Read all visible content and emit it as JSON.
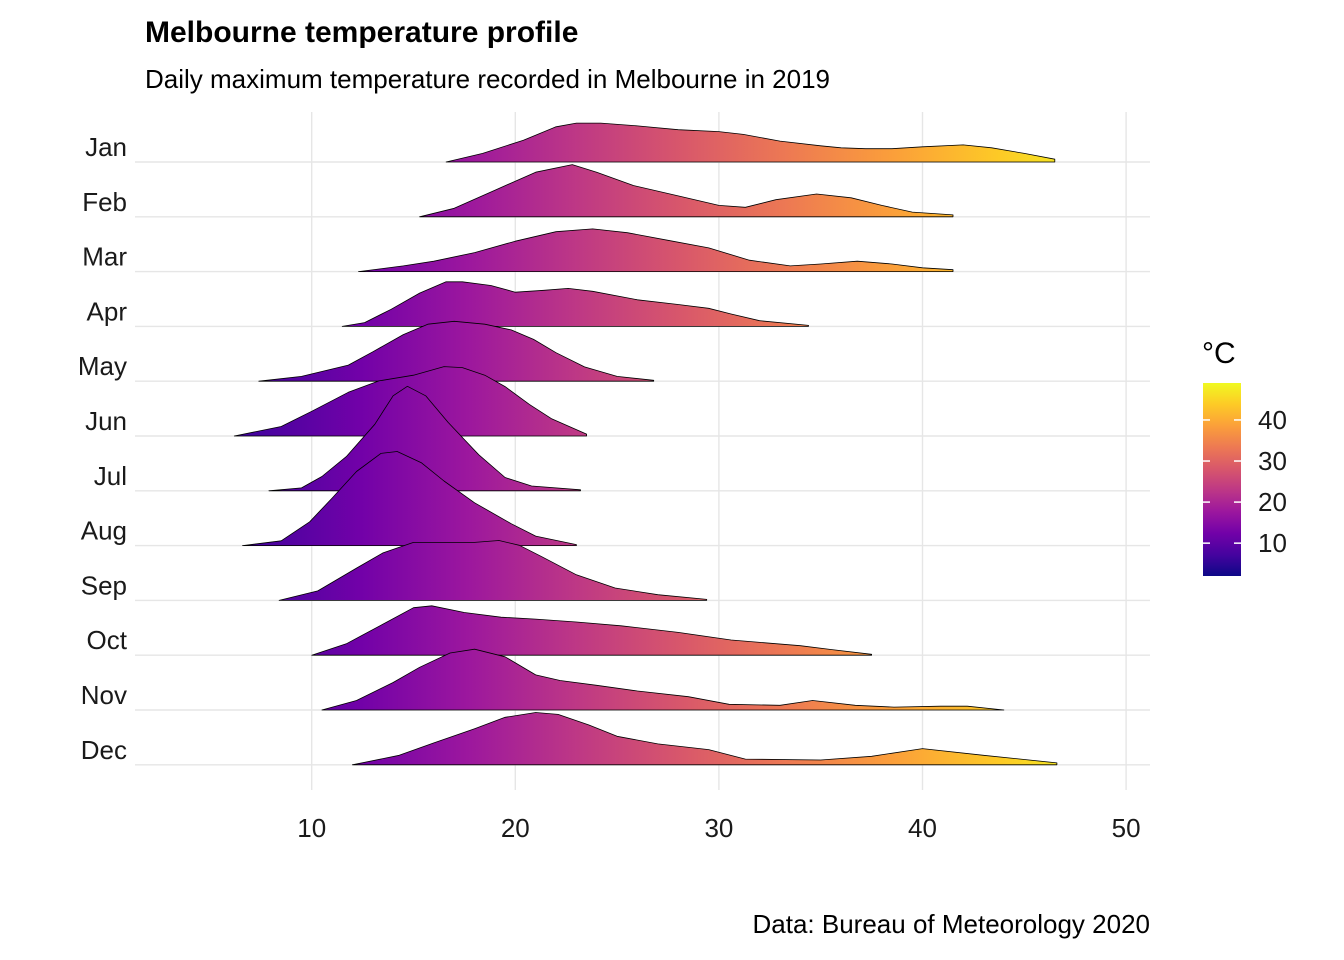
{
  "title": "Melbourne temperature profile",
  "subtitle": "Daily maximum temperature recorded in Melbourne in 2019",
  "caption": "Data: Bureau of Meteorology 2020",
  "chart_data": {
    "type": "ridgeline",
    "x_ticks": [
      10,
      20,
      30,
      40,
      50
    ],
    "x_range": [
      1.5,
      51.2
    ],
    "grid": true,
    "legend": {
      "title": "°C",
      "position": "right",
      "ticks": [
        10,
        20,
        30,
        40
      ],
      "range": [
        2,
        49
      ],
      "colormap": "plasma"
    },
    "series": [
      {
        "name": "Jan",
        "x": [
          16.6,
          18.4,
          20.4,
          22,
          23,
          24.2,
          26,
          28,
          30,
          31.2,
          33,
          35,
          36,
          37.2,
          38.5,
          40,
          42,
          43.4,
          45,
          46.5
        ],
        "density": [
          0,
          0.09,
          0.23,
          0.37,
          0.41,
          0.41,
          0.38,
          0.34,
          0.32,
          0.29,
          0.22,
          0.17,
          0.15,
          0.14,
          0.14,
          0.16,
          0.18,
          0.15,
          0.09,
          0.03
        ]
      },
      {
        "name": "Feb",
        "x": [
          15.3,
          17,
          19,
          21,
          22.8,
          24,
          25.8,
          28,
          30,
          31.3,
          32.8,
          34.8,
          36.5,
          38,
          39.5,
          41.5
        ],
        "density": [
          0,
          0.09,
          0.28,
          0.47,
          0.55,
          0.47,
          0.33,
          0.22,
          0.12,
          0.1,
          0.18,
          0.24,
          0.2,
          0.12,
          0.05,
          0.02
        ]
      },
      {
        "name": "Mar",
        "x": [
          12.3,
          14.5,
          16,
          18,
          20,
          22,
          23.8,
          25.5,
          27.5,
          29.5,
          31.5,
          33.5,
          35,
          36.8,
          38.5,
          40,
          41.5
        ],
        "density": [
          0,
          0.06,
          0.11,
          0.2,
          0.32,
          0.42,
          0.45,
          0.41,
          0.33,
          0.25,
          0.12,
          0.06,
          0.08,
          0.11,
          0.08,
          0.04,
          0.02
        ]
      },
      {
        "name": "Apr",
        "x": [
          11.5,
          12.6,
          13.9,
          15.3,
          16.6,
          17.4,
          18.8,
          20,
          21.4,
          22.6,
          23.8,
          26,
          28,
          29.5,
          30.6,
          32,
          34.4
        ],
        "density": [
          0,
          0.04,
          0.18,
          0.35,
          0.47,
          0.47,
          0.43,
          0.36,
          0.38,
          0.4,
          0.37,
          0.28,
          0.23,
          0.19,
          0.13,
          0.06,
          0.01
        ]
      },
      {
        "name": "May",
        "x": [
          7.4,
          9.5,
          11.8,
          13,
          14.5,
          15.7,
          17,
          18.5,
          19.8,
          20.9,
          22,
          23.4,
          25,
          26.8
        ],
        "density": [
          0,
          0.05,
          0.17,
          0.31,
          0.49,
          0.6,
          0.63,
          0.6,
          0.54,
          0.44,
          0.3,
          0.15,
          0.05,
          0.01
        ]
      },
      {
        "name": "Jun",
        "x": [
          6.2,
          8.5,
          10,
          11.8,
          13.3,
          15,
          16.5,
          17.4,
          18.5,
          19.5,
          20.7,
          21.8,
          23.5
        ],
        "density": [
          0,
          0.1,
          0.26,
          0.46,
          0.58,
          0.64,
          0.73,
          0.72,
          0.64,
          0.52,
          0.33,
          0.18,
          0.02
        ]
      },
      {
        "name": "Jul",
        "x": [
          7.9,
          9.5,
          10.5,
          11.7,
          13.1,
          14,
          14.7,
          15.6,
          16.7,
          18.2,
          19.5,
          20.8,
          23.2
        ],
        "density": [
          0,
          0.03,
          0.15,
          0.36,
          0.7,
          1.0,
          1.1,
          1.0,
          0.72,
          0.38,
          0.14,
          0.05,
          0.01
        ]
      },
      {
        "name": "Aug",
        "x": [
          6.6,
          8.5,
          9.9,
          11,
          12.2,
          13.4,
          14.2,
          15.4,
          16.5,
          18,
          19.8,
          21,
          23
        ],
        "density": [
          0,
          0.05,
          0.25,
          0.5,
          0.78,
          0.97,
          0.99,
          0.87,
          0.68,
          0.45,
          0.23,
          0.1,
          0.01
        ]
      },
      {
        "name": "Sep",
        "x": [
          8.4,
          10.3,
          12.2,
          13.5,
          15,
          16.7,
          18,
          19.2,
          20.2,
          21.3,
          23,
          24.9,
          27,
          29.4
        ],
        "density": [
          0,
          0.1,
          0.34,
          0.5,
          0.61,
          0.61,
          0.61,
          0.63,
          0.58,
          0.46,
          0.27,
          0.13,
          0.06,
          0.01
        ]
      },
      {
        "name": "Oct",
        "x": [
          10,
          11.7,
          13.7,
          15,
          15.9,
          17.5,
          19.3,
          21,
          23,
          25.2,
          28,
          30.6,
          34,
          35.5,
          37.5
        ],
        "density": [
          0,
          0.12,
          0.35,
          0.5,
          0.52,
          0.45,
          0.4,
          0.38,
          0.35,
          0.31,
          0.24,
          0.16,
          0.1,
          0.06,
          0.01
        ]
      },
      {
        "name": "Nov",
        "x": [
          10.5,
          12.2,
          14,
          15.3,
          16.8,
          18,
          19.5,
          21,
          22.2,
          24,
          26,
          28.5,
          30.5,
          33,
          34.6,
          36.7,
          38.6,
          40.9,
          42.2,
          44
        ],
        "density": [
          0,
          0.1,
          0.29,
          0.45,
          0.6,
          0.64,
          0.56,
          0.37,
          0.31,
          0.26,
          0.2,
          0.14,
          0.06,
          0.05,
          0.1,
          0.05,
          0.03,
          0.04,
          0.04,
          0
        ]
      },
      {
        "name": "Dec",
        "x": [
          12,
          14.3,
          16,
          18,
          19.5,
          21,
          22.1,
          23.6,
          25,
          27,
          29.5,
          31.3,
          35,
          37.5,
          40,
          43,
          46.6
        ],
        "density": [
          0,
          0.1,
          0.23,
          0.38,
          0.5,
          0.55,
          0.53,
          0.42,
          0.3,
          0.22,
          0.16,
          0.06,
          0.05,
          0.09,
          0.17,
          0.1,
          0.02
        ]
      }
    ]
  }
}
